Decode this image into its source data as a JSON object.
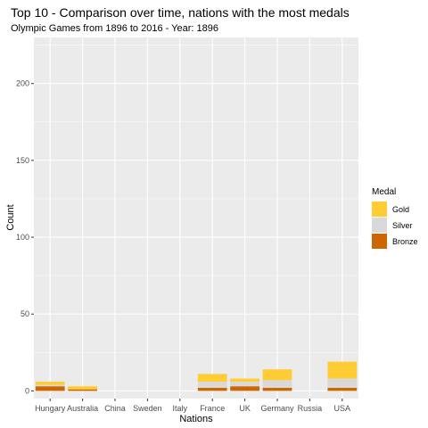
{
  "chart_data": {
    "type": "bar",
    "stacked": true,
    "title": "Top 10 - Comparison over time, nations with the most medals",
    "subtitle": "Olympic Games from 1896 to 2016 - Year: 1896",
    "xlabel": "Nations",
    "ylabel": "Count",
    "categories": [
      "Hungary",
      "Australia",
      "China",
      "Sweden",
      "Italy",
      "France",
      "UK",
      "Germany",
      "Russia",
      "USA"
    ],
    "series": [
      {
        "name": "Bronze",
        "color": "#cc6600",
        "values": [
          3,
          1,
          0,
          0,
          0,
          2,
          3,
          2,
          0,
          2
        ]
      },
      {
        "name": "Silver",
        "color": "#d9d9d9",
        "values": [
          1,
          0,
          0,
          0,
          0,
          4,
          3,
          5,
          0,
          6
        ]
      },
      {
        "name": "Gold",
        "color": "#ffcc33",
        "values": [
          2,
          2,
          0,
          0,
          0,
          5,
          2,
          7,
          0,
          11
        ]
      }
    ],
    "ylim": [
      -5,
      230
    ],
    "yticks": [
      0,
      50,
      100,
      150,
      200
    ],
    "grid": true,
    "legend": {
      "title": "Medal",
      "position": "right",
      "entries": [
        "Gold",
        "Silver",
        "Bronze"
      ]
    },
    "colors": {
      "panel_background": "#ebebeb",
      "grid": "#ffffff"
    }
  }
}
